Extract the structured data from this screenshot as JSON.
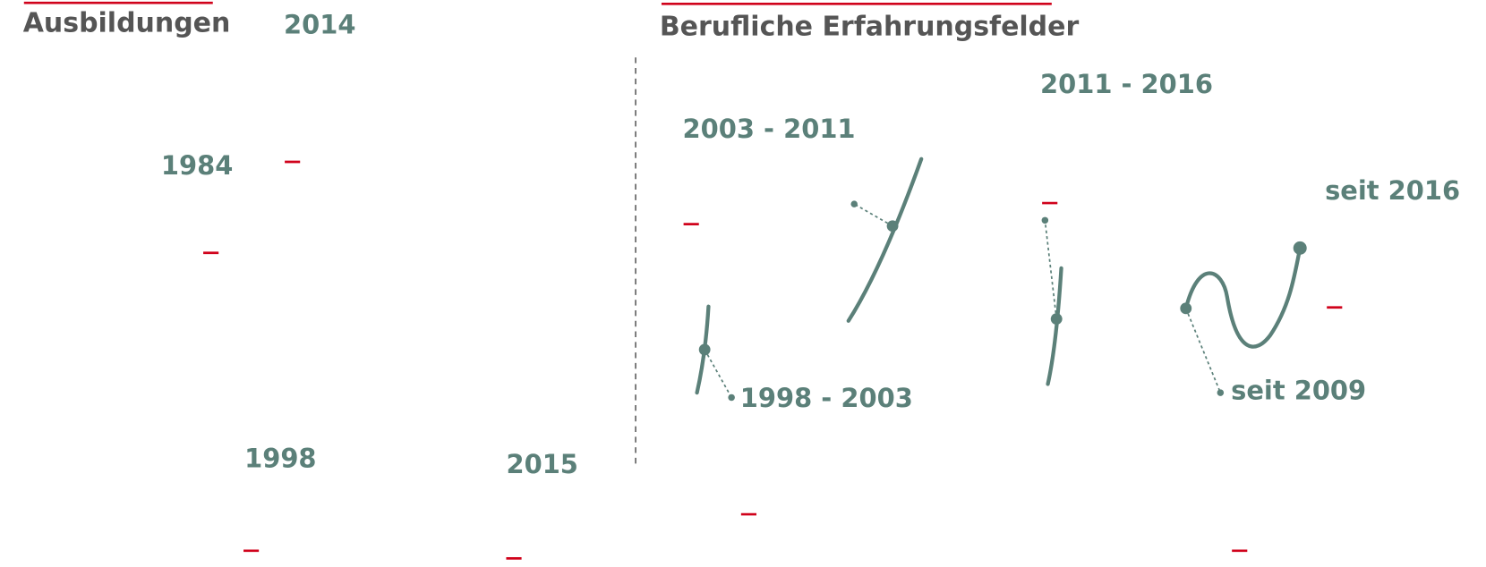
{
  "left_section": {
    "heading": "Ausbildungen",
    "years": [
      "2014",
      "1984",
      "1998",
      "2015"
    ]
  },
  "right_section": {
    "heading": "Berufliche Erfahrungsfelder",
    "periods": [
      "2011 - 2016",
      "2003 - 2011",
      "seit 2016",
      "1998 - 2003",
      "seit 2009"
    ]
  }
}
